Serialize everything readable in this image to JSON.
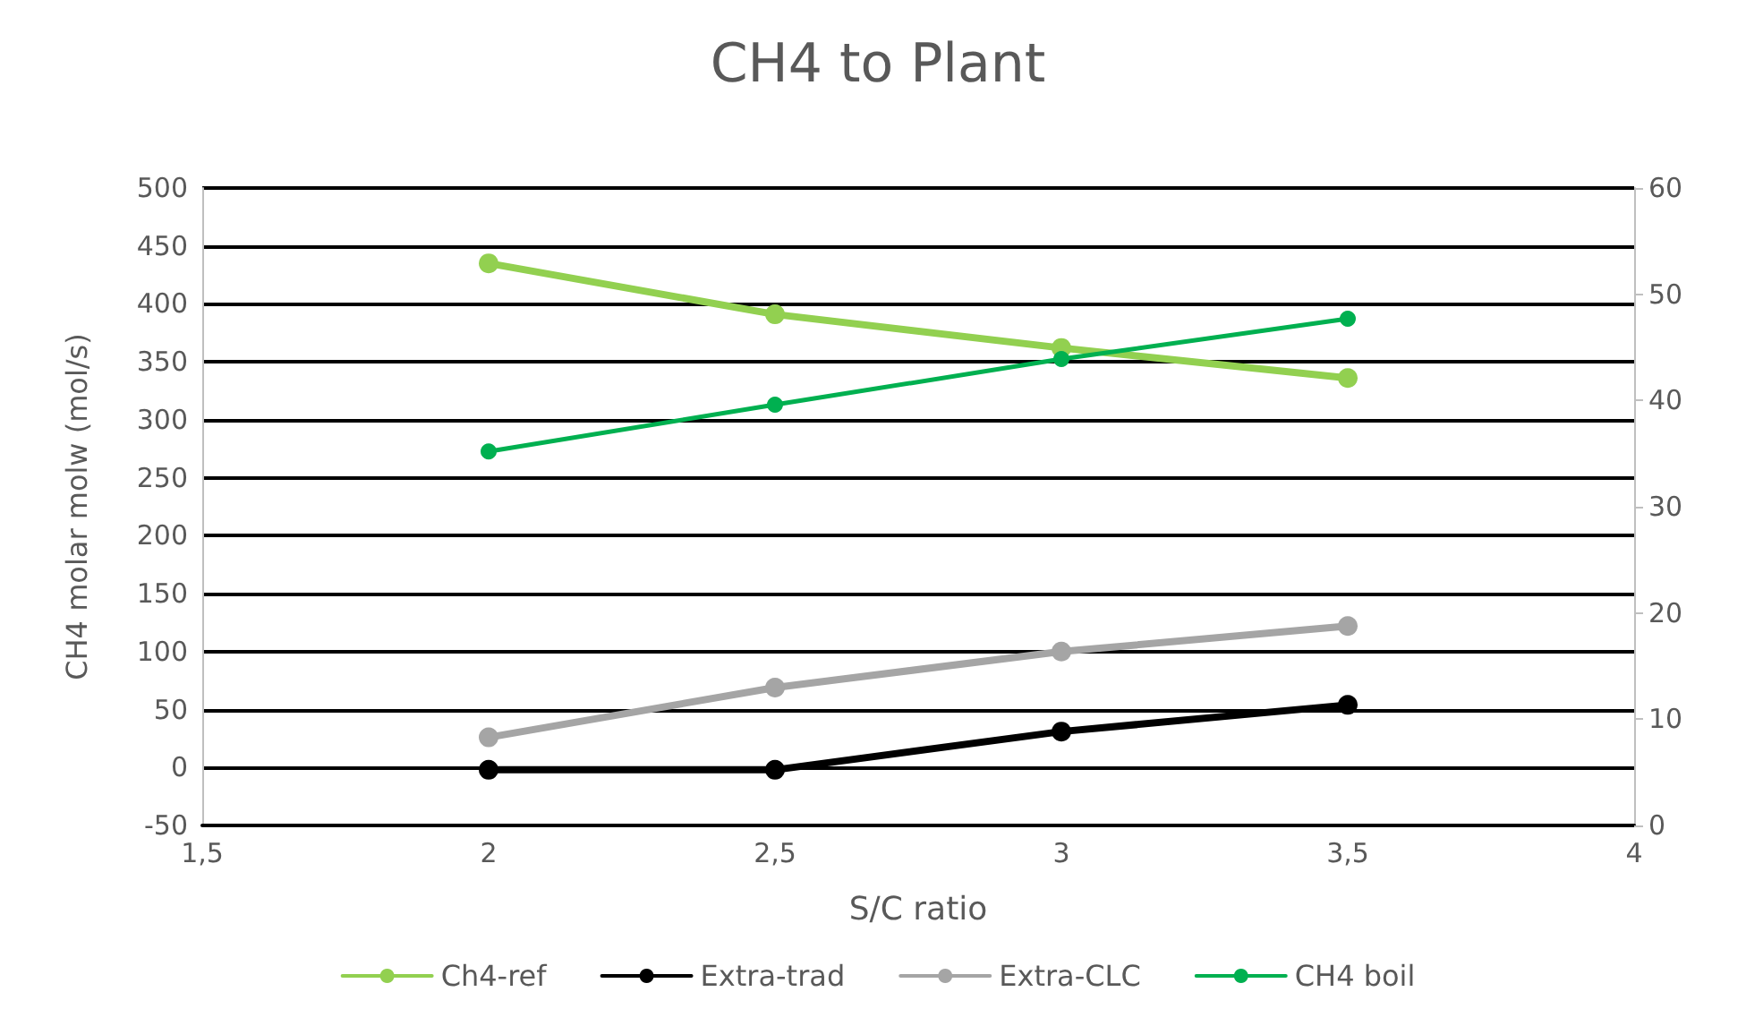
{
  "chart_data": {
    "type": "line",
    "title": "CH4 to Plant",
    "xlabel": "S/C ratio",
    "ylabel": "CH4 molar molw (mol/s)",
    "x": [
      2,
      2.5,
      3,
      3.5
    ],
    "xlim": [
      1.5,
      4
    ],
    "xticks": [
      {
        "value": 1.5,
        "label": "1,5"
      },
      2,
      {
        "value": 2.5,
        "label": "2,5"
      },
      3,
      {
        "value": 3.5,
        "label": "3,5"
      },
      4
    ],
    "ylim": [
      -50,
      500
    ],
    "yticks": [
      -50,
      0,
      50,
      100,
      150,
      200,
      250,
      300,
      350,
      400,
      450,
      500
    ],
    "y2lim": [
      0,
      60
    ],
    "y2ticks": [
      0,
      10,
      20,
      30,
      40,
      50,
      60
    ],
    "grid": "y",
    "legend": "bottom",
    "marker": "circle",
    "line_style": "solid",
    "series": [
      {
        "name": "Ch4-ref",
        "color": "#92d050",
        "values": [
          435,
          391,
          362,
          336
        ]
      },
      {
        "name": "Extra-trad",
        "color": "#000000",
        "values": [
          -2,
          -2,
          31,
          54
        ]
      },
      {
        "name": "Extra-CLC",
        "color": "#a5a5a5",
        "values": [
          26,
          69,
          100,
          122
        ]
      },
      {
        "name": "CH4 boil",
        "color": "#00b050",
        "axis": "y2",
        "values": [
          35.2,
          39.6,
          43.9,
          47.7
        ]
      }
    ]
  }
}
